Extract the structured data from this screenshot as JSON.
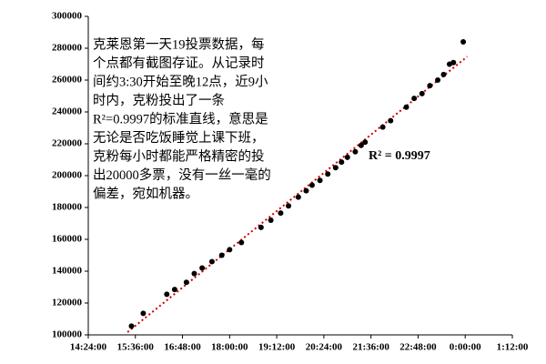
{
  "chart_data": {
    "type": "scatter",
    "annotation": "R² = 0.9997",
    "text_block": [
      "克莱恩第一天19投票数据，每",
      "个点都有截图存证。从记录时",
      "间约3:30开始至晚12点，近9小",
      "时内，克粉投出了一条",
      "R²=0.9997的标准直线，意思是",
      "无论是否吃饭睡觉上课下班，",
      "克粉每小时都能严格精密的投",
      "出20000多票，没有一丝一毫的",
      "偏差，宛如机器。"
    ],
    "x": [
      15.5,
      15.8,
      16.4,
      16.6,
      16.9,
      17.1,
      17.3,
      17.55,
      17.8,
      18.0,
      18.3,
      18.8,
      19.05,
      19.3,
      19.5,
      19.75,
      19.95,
      20.1,
      20.3,
      20.5,
      20.7,
      20.85,
      21.0,
      21.2,
      21.35,
      21.45,
      21.9,
      22.1,
      22.5,
      22.7,
      22.9,
      23.1,
      23.3,
      23.45,
      23.6,
      23.7,
      23.95
    ],
    "values": [
      105500,
      113500,
      125500,
      128500,
      133000,
      138500,
      142000,
      146000,
      150000,
      153500,
      158000,
      167500,
      172000,
      176500,
      181000,
      186500,
      190500,
      194000,
      197000,
      201000,
      205000,
      208500,
      211500,
      215000,
      219000,
      221000,
      230500,
      234500,
      243000,
      248500,
      251500,
      256500,
      260000,
      263500,
      270000,
      271000,
      284000
    ],
    "color": "#000000",
    "trendline_color": "#cc0000",
    "xlim": [
      14.4,
      25.2
    ],
    "xticks": [
      {
        "value": 14.4,
        "label": "14:24:00"
      },
      {
        "value": 15.6,
        "label": "15:36:00"
      },
      {
        "value": 16.8,
        "label": "16:48:00"
      },
      {
        "value": 18,
        "label": "18:00:00"
      },
      {
        "value": 19.2,
        "label": "19:12:00"
      },
      {
        "value": 20.4,
        "label": "20:24:00"
      },
      {
        "value": 21.6,
        "label": "21:36:00"
      },
      {
        "value": 22.8,
        "label": "22:48:00"
      },
      {
        "value": 24,
        "label": "0:00:00"
      },
      {
        "value": 25.2,
        "label": "1:12:00"
      }
    ],
    "ylim": [
      100000,
      300000
    ],
    "yticks": [
      100000,
      120000,
      140000,
      160000,
      180000,
      200000,
      220000,
      240000,
      260000,
      280000,
      300000
    ]
  }
}
